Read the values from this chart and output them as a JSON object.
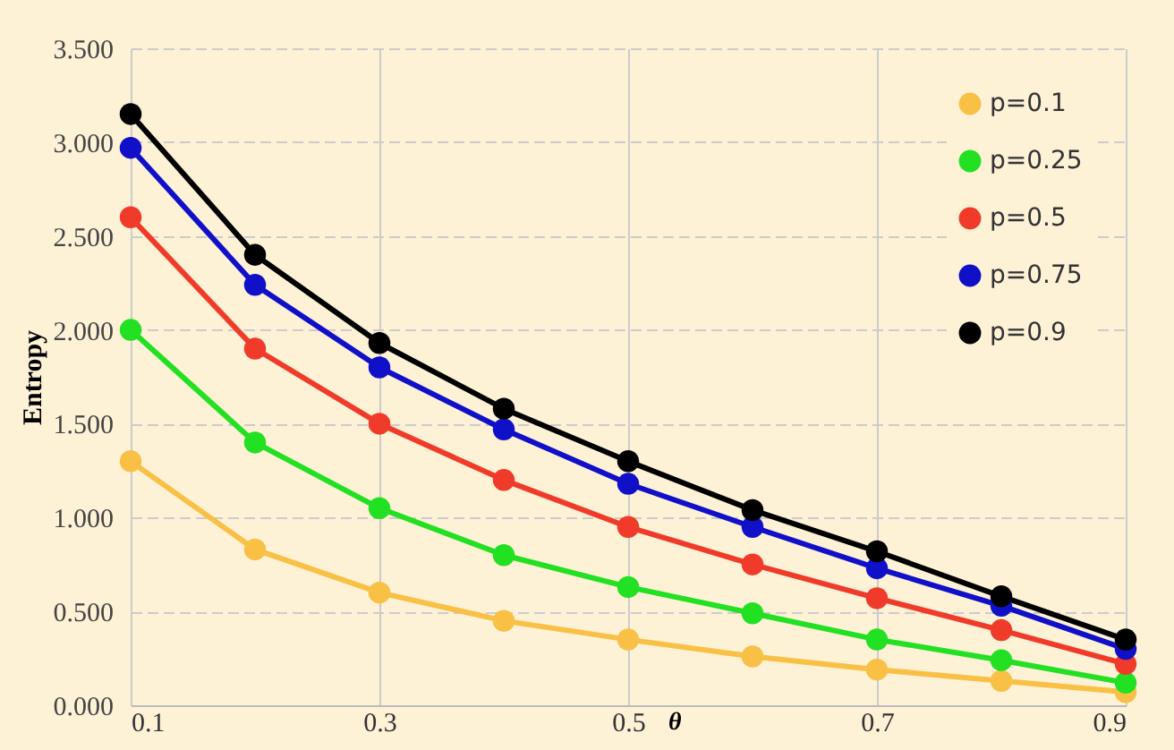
{
  "chart_data": {
    "type": "line",
    "xlabel": "θ",
    "ylabel": "Entropy",
    "x": [
      0.1,
      0.2,
      0.3,
      0.4,
      0.5,
      0.6,
      0.7,
      0.8,
      0.9
    ],
    "series": [
      {
        "name": "p=0.1",
        "color": "#f8c146",
        "values": [
          1.3,
          0.83,
          0.6,
          0.45,
          0.35,
          0.26,
          0.19,
          0.13,
          0.07
        ]
      },
      {
        "name": "p=0.25",
        "color": "#22e022",
        "values": [
          2.0,
          1.4,
          1.05,
          0.8,
          0.63,
          0.49,
          0.35,
          0.24,
          0.12
        ]
      },
      {
        "name": "p=0.5",
        "color": "#f03a2a",
        "values": [
          2.6,
          1.9,
          1.5,
          1.2,
          0.95,
          0.75,
          0.57,
          0.4,
          0.22
        ]
      },
      {
        "name": "p=0.75",
        "color": "#1010c8",
        "values": [
          2.97,
          2.24,
          1.8,
          1.47,
          1.18,
          0.95,
          0.73,
          0.53,
          0.3
        ]
      },
      {
        "name": "p=0.9",
        "color": "#000000",
        "values": [
          3.15,
          2.4,
          1.93,
          1.58,
          1.3,
          1.04,
          0.82,
          0.58,
          0.35
        ]
      }
    ],
    "xlim": [
      0.1,
      0.9
    ],
    "xticks": [
      0.1,
      0.3,
      0.5,
      0.7,
      0.9
    ],
    "ylim": [
      0,
      3.5
    ],
    "yticks": [
      {
        "value": 0,
        "label": "0.000"
      },
      {
        "value": 0.5,
        "label": "0.500"
      },
      {
        "value": 1,
        "label": "1.000"
      },
      {
        "value": 1.5,
        "label": "1.500"
      },
      {
        "value": 2,
        "label": "2.000"
      },
      {
        "value": 2.5,
        "label": "2.500"
      },
      {
        "value": 3,
        "label": "3.000"
      },
      {
        "value": 3.5,
        "label": "3.500"
      }
    ],
    "grid": true,
    "legend": "top right",
    "marker": "circle",
    "line_style": "solid"
  }
}
